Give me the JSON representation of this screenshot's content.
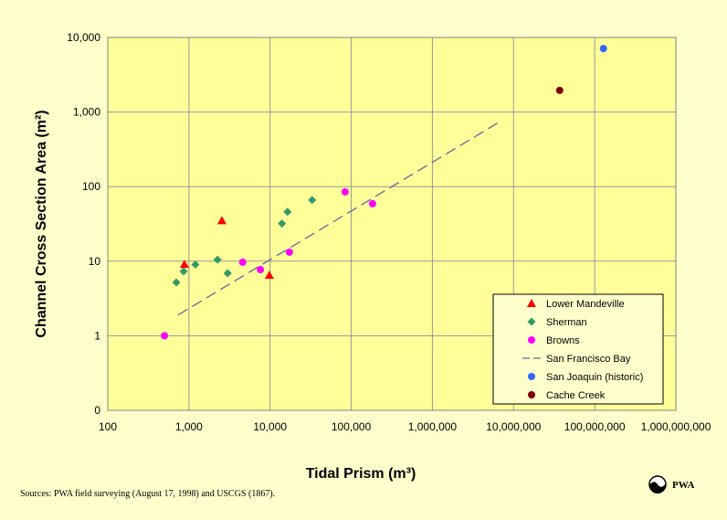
{
  "chart_data": {
    "type": "scatter",
    "x_label": "Tidal Prism (m³)",
    "y_label": "Channel Cross Section Area (m²)",
    "x_log": true,
    "y_log": true,
    "grid": true,
    "legend": "lower right",
    "xlim": [
      100,
      1000000000
    ],
    "ylim": [
      0.1,
      10000
    ],
    "xticks": [
      100,
      {
        "value": 1000,
        "label": "1,000"
      },
      {
        "value": 10000,
        "label": "10,000"
      },
      {
        "value": 100000,
        "label": "100,000"
      },
      {
        "value": 1000000,
        "label": "1,000,000"
      },
      {
        "value": 10000000,
        "label": "10,000,000"
      },
      {
        "value": 100000000,
        "label": "100,000,000"
      },
      {
        "value": 1000000000,
        "label": "1,000,000,000"
      }
    ],
    "yticks": [
      {
        "value": 0.1,
        "label": "0"
      },
      1,
      10,
      100,
      {
        "value": 1000,
        "label": "1,000"
      },
      {
        "value": 10000,
        "label": "10,000"
      }
    ],
    "series": [
      {
        "name": "Lower Mandeville",
        "color": "#ff0000",
        "marker": "triangle",
        "x": [
          880,
          2550,
          9800
        ],
        "values": [
          9.1,
          35,
          6.5
        ]
      },
      {
        "name": "Sherman",
        "color": "#339966",
        "marker": "diamond",
        "x": [
          700,
          860,
          1200,
          2250,
          3000,
          14000,
          16400,
          33000
        ],
        "values": [
          5.2,
          7.3,
          9,
          10.5,
          6.9,
          32,
          46,
          66
        ]
      },
      {
        "name": "Browns",
        "color": "#ff00ff",
        "marker": "circle",
        "x": [
          500,
          4600,
          7600,
          17300,
          84000,
          183000
        ],
        "values": [
          1,
          9.7,
          7.7,
          13.2,
          85,
          59
        ]
      },
      {
        "name": "San Francisco Bay",
        "color": "#666699",
        "marker": "dash",
        "x": [
          735,
          6900000
        ],
        "values": [
          1.9,
          750
        ]
      },
      {
        "name": "San Joaquin (historic)",
        "color": "#3366ff",
        "marker": "circle",
        "x": [
          128000000
        ],
        "values": [
          7100
        ]
      },
      {
        "name": "Cache Creek",
        "color": "#800000",
        "marker": "circle",
        "x": [
          37000000
        ],
        "values": [
          1950
        ]
      }
    ]
  },
  "footer": {
    "source": "Sources: PWA field surveying (August 17, 1998) and USCGS (1867).",
    "logo_text": "PWA"
  }
}
